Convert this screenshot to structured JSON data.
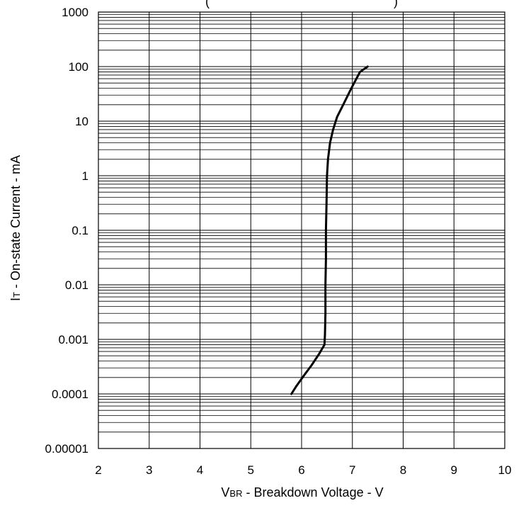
{
  "chart_data": {
    "type": "line",
    "title_fragment": "(",
    "title_fragment_tail": ")",
    "xlabel": {
      "main": "V",
      "sub": "BR",
      "rest": " - Breakdown Voltage - V"
    },
    "ylabel": {
      "main": "I",
      "sub": "T",
      "rest": " - On-state Current - mA"
    },
    "xlim": [
      2,
      10
    ],
    "ylim": [
      1e-05,
      1000
    ],
    "yscale": "log",
    "grid": true,
    "x_ticks": [
      "2",
      "3",
      "4",
      "5",
      "6",
      "7",
      "8",
      "9",
      "10"
    ],
    "y_ticks": [
      "0.00001",
      "0.0001",
      "0.001",
      "0.01",
      "0.1",
      "1",
      "10",
      "100",
      "1000"
    ],
    "series": [
      {
        "x": [
          5.8,
          5.9,
          6.05,
          6.2,
          6.35,
          6.45,
          6.46,
          6.47,
          6.47,
          6.48,
          6.48,
          6.49,
          6.5,
          6.52,
          6.56,
          6.62,
          6.7,
          6.82,
          6.98,
          7.15,
          7.3
        ],
        "y": [
          0.0001,
          0.00014,
          0.00022,
          0.00034,
          0.00055,
          0.0008,
          0.0012,
          0.003,
          0.01,
          0.03,
          0.1,
          0.3,
          1,
          2,
          4,
          7,
          12,
          20,
          40,
          80,
          100
        ]
      }
    ]
  }
}
